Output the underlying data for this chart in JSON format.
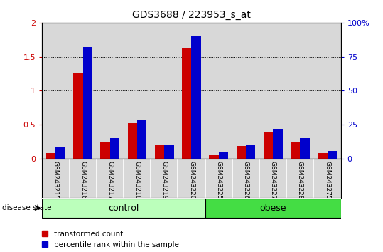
{
  "title": "GDS3688 / 223953_s_at",
  "samples": [
    "GSM243215",
    "GSM243216",
    "GSM243217",
    "GSM243218",
    "GSM243219",
    "GSM243220",
    "GSM243225",
    "GSM243226",
    "GSM243227",
    "GSM243228",
    "GSM243275"
  ],
  "transformed_count": [
    0.08,
    1.27,
    0.24,
    0.52,
    0.2,
    1.63,
    0.05,
    0.19,
    0.39,
    0.24,
    0.08
  ],
  "percentile_rank_pct": [
    9,
    82,
    15,
    28,
    10,
    90,
    5,
    10,
    22,
    15,
    6
  ],
  "groups": [
    {
      "label": "control",
      "start": 0,
      "end": 6,
      "color": "#bbffbb"
    },
    {
      "label": "obese",
      "start": 6,
      "end": 11,
      "color": "#44dd44"
    }
  ],
  "ylim_left": [
    0,
    2
  ],
  "ylim_right": [
    0,
    100
  ],
  "yticks_left": [
    0,
    0.5,
    1.0,
    1.5,
    2.0
  ],
  "ytick_left_labels": [
    "0",
    "0.5",
    "1",
    "1.5",
    "2"
  ],
  "yticks_right": [
    0,
    25,
    50,
    75,
    100
  ],
  "ytick_right_labels": [
    "0",
    "25",
    "50",
    "75",
    "100%"
  ],
  "bar_color_red": "#cc0000",
  "bar_color_blue": "#0000cc",
  "bar_width": 0.35,
  "bg_color_plot": "#d8d8d8",
  "bg_color_fig": "#ffffff",
  "legend_labels": [
    "transformed count",
    "percentile rank within the sample"
  ],
  "disease_state_label": "disease state"
}
